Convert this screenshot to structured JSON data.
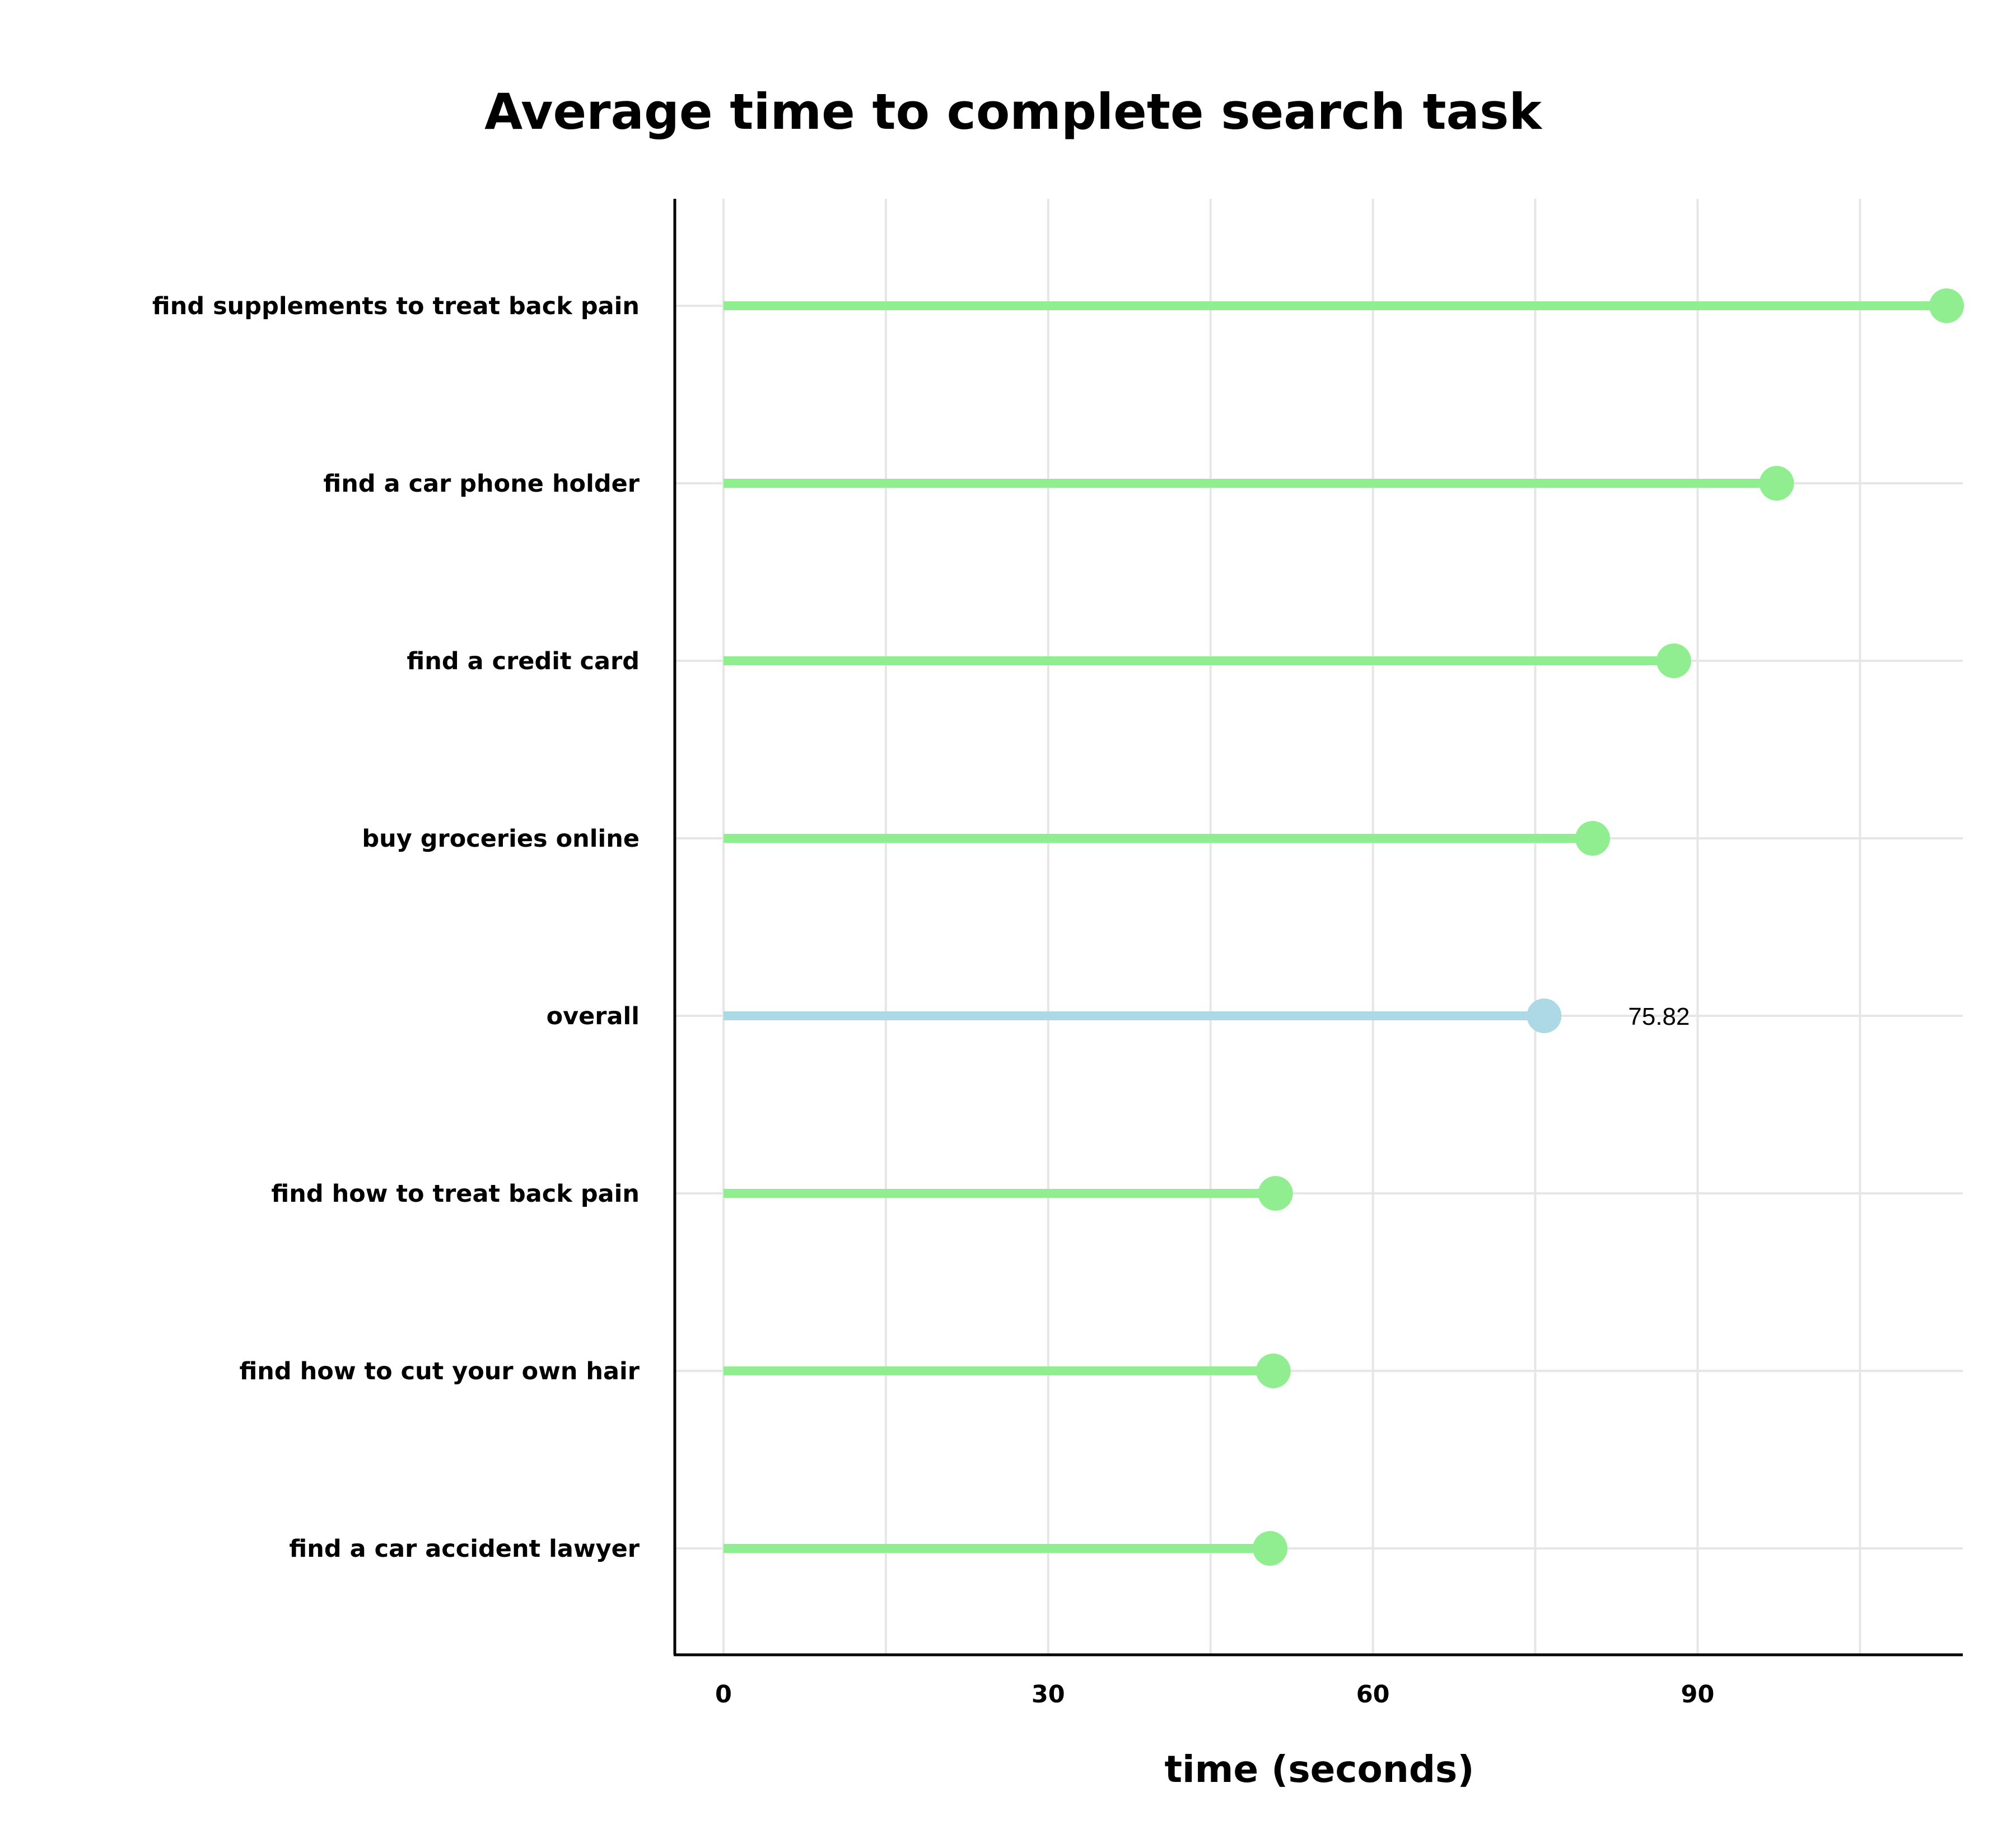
{
  "chart_data": {
    "type": "lollipop",
    "title": "Average time to complete search task",
    "xlabel": "time (seconds)",
    "ylabel": "",
    "xlim": [
      -4.5,
      114.5
    ],
    "x_ticks": [
      0,
      30,
      60,
      90
    ],
    "grid": true,
    "categories": [
      "find supplements to treat back pain",
      "find a car phone holder",
      "find a credit card",
      "buy groceries online",
      "overall",
      "find how to treat back pain",
      "find how to cut your own hair",
      "find a car accident lawyer"
    ],
    "values": [
      113,
      97.3,
      87.8,
      80.3,
      75.82,
      51,
      50.8,
      50.5
    ],
    "highlight": {
      "category": "overall",
      "label": "75.82"
    },
    "colors": {
      "default": "#90ee90",
      "highlight": "#add8e6"
    }
  }
}
